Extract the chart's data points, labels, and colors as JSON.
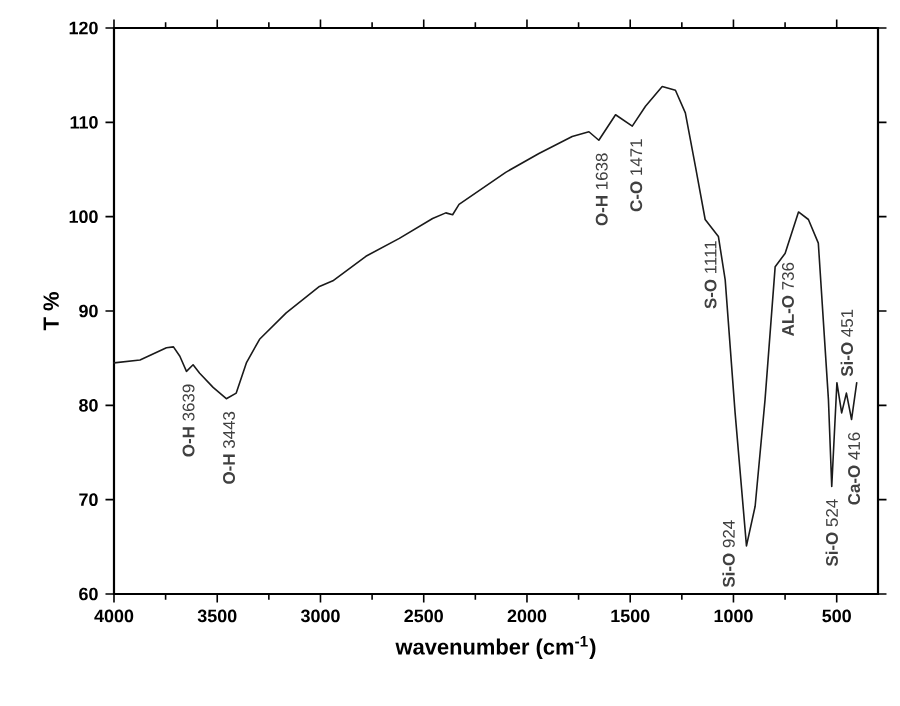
{
  "chart_data": {
    "type": "line",
    "xlabel": "wavenumber (cm$^{-1}$)",
    "ylabel": "T %",
    "xlim": [
      4000,
      300
    ],
    "ylim": [
      60,
      120
    ],
    "xticks": [
      4000,
      3500,
      3000,
      2500,
      2000,
      1500,
      1000,
      500
    ],
    "yticks": [
      60,
      70,
      80,
      90,
      100,
      110,
      120
    ],
    "series": [
      {
        "color": "#1a1a1a",
        "x": [
          4000,
          3874,
          3746,
          3712,
          3681,
          3649,
          3617,
          3585,
          3520,
          3456,
          3408,
          3359,
          3295,
          3166,
          3005,
          2940,
          2780,
          2618,
          2457,
          2393,
          2360,
          2329,
          2103,
          1942,
          1781,
          1700,
          1652,
          1571,
          1490,
          1426,
          1345,
          1281,
          1233,
          1184,
          1137,
          1073,
          1040,
          992,
          937,
          895,
          847,
          798,
          750,
          685,
          637,
          589,
          540,
          524,
          499,
          476,
          453,
          428,
          403
        ],
        "values": [
          84.5,
          84.8,
          86.1,
          86.2,
          85.2,
          83.6,
          84.3,
          83.4,
          81.9,
          80.7,
          81.3,
          84.5,
          87.0,
          89.8,
          92.6,
          93.2,
          95.8,
          97.7,
          99.8,
          100.4,
          100.2,
          101.3,
          104.7,
          106.7,
          108.5,
          109.0,
          108.1,
          110.8,
          109.6,
          111.7,
          113.8,
          113.4,
          111.0,
          105.3,
          99.7,
          97.9,
          93.3,
          79.2,
          65.1,
          69.3,
          80.6,
          94.7,
          96.1,
          100.5,
          99.7,
          97.2,
          80.6,
          71.4,
          82.4,
          79.2,
          81.3,
          78.5,
          82.4
        ]
      }
    ],
    "annotations": [
      {
        "text": "**O-H** 3639",
        "x": 3639,
        "y": 83.6
      },
      {
        "text": "**O-H** 3443",
        "x": 3443,
        "y": 80.7
      },
      {
        "text": "**O-H** 1638",
        "x": 1638,
        "y": 108.1
      },
      {
        "text": "**C-O** 1471",
        "x": 1471,
        "y": 109.6
      },
      {
        "text": "**S-O** 1111",
        "x": 1111,
        "y": 98.8
      },
      {
        "text": "**Si-O** 924",
        "x": 924,
        "y": 65.1
      },
      {
        "text": "**AL-O** 736",
        "x": 736,
        "y": 96.5
      },
      {
        "text": "**Si-O** 524",
        "x": 524,
        "y": 71.4
      },
      {
        "text": "**Ca-O** 416",
        "x": 416,
        "y": 78.5
      },
      {
        "text": "**Si-O** 451",
        "x": 451,
        "y": 81.3
      }
    ]
  }
}
